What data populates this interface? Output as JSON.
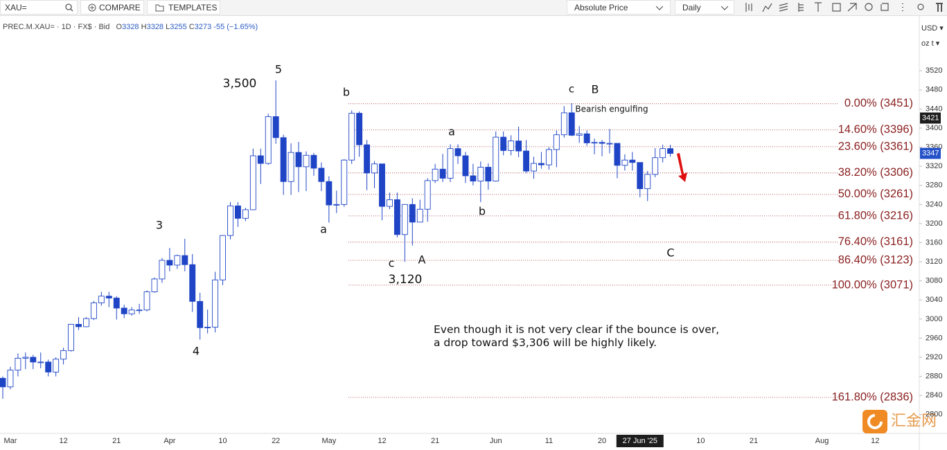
{
  "toolbar": {
    "symbol": "XAU=",
    "compare": "COMPARE",
    "templates": "TEMPLATES",
    "price_mode": "Absolute Price",
    "interval": "Daily"
  },
  "legend": {
    "instrument": "PREC.M.XAU= · 1D · FX$ · Bid",
    "ohlc": [
      {
        "key": "O",
        "value": 3328
      },
      {
        "key": "H",
        "value": 3328
      },
      {
        "key": "L",
        "value": 3255
      },
      {
        "key": "C",
        "value": 3273
      }
    ],
    "change": "-55 (−1.65%)"
  },
  "chart_data": {
    "type": "candlestick",
    "categories": [
      null,
      "Mar",
      null,
      null,
      null,
      null,
      null,
      null,
      "12",
      null,
      null,
      null,
      null,
      null,
      null,
      "21",
      null,
      null,
      null,
      null,
      null,
      null,
      "Apr",
      null,
      null,
      null,
      null,
      null,
      null,
      "10",
      null,
      null,
      null,
      null,
      null,
      null,
      "22",
      null,
      null,
      null,
      null,
      null,
      null,
      "May",
      null,
      null,
      null,
      null,
      null,
      null,
      "12",
      null,
      null,
      null,
      null,
      null,
      null,
      "21",
      null,
      null,
      null,
      null,
      null,
      null,
      null,
      "Jun",
      null,
      null,
      null,
      null,
      null,
      null,
      "11",
      null,
      null,
      null,
      null,
      null,
      null,
      "20",
      null,
      null,
      null,
      null,
      "27 Jun '25",
      null,
      null,
      null,
      null,
      null,
      null,
      null,
      "10",
      null,
      null,
      null,
      null,
      null,
      null,
      "21",
      null,
      null,
      null,
      null,
      null,
      null,
      null,
      null,
      "Aug",
      null,
      null,
      null,
      null,
      null,
      null,
      "12",
      null,
      null,
      null,
      null,
      null
    ],
    "open": [
      2876,
      2858,
      2893,
      2918,
      2920,
      2910,
      2910,
      2889,
      2916,
      2934,
      2989,
      2984,
      3001,
      3034,
      3048,
      3044,
      3023,
      3011,
      3019,
      3019,
      3057,
      3084,
      3123,
      3113,
      3133,
      3114,
      3037,
      2982,
      2983,
      3082,
      3175,
      3237,
      3211,
      3229,
      3342,
      3326,
      3424,
      3380,
      3288,
      3349,
      3319,
      3343,
      3316,
      3288,
      3239,
      3240,
      3333,
      3431,
      3365,
      3306,
      3325,
      3236,
      3250,
      3177,
      3240,
      3203,
      3230,
      3290,
      3314,
      3295,
      3357,
      3342,
      3300,
      3289,
      3318,
      3289,
      3381,
      3353,
      3373,
      3352,
      3310,
      3326,
      3323,
      3355,
      3386,
      3432,
      3385,
      3388,
      3369,
      3370,
      3368,
      3368,
      3322,
      3333,
      3328,
      3273,
      3303,
      3338,
      3357,
      null,
      null,
      null,
      null,
      null,
      null,
      null,
      null,
      null,
      null,
      null,
      null,
      null,
      null,
      null,
      null,
      null,
      null,
      null,
      null,
      null,
      null,
      null,
      null,
      null,
      null,
      null,
      null,
      null,
      null,
      null,
      null
    ],
    "high": [
      2880,
      2900,
      2928,
      2930,
      2925,
      2930,
      2915,
      2920,
      2940,
      2990,
      3004,
      3004,
      3038,
      3057,
      3057,
      3048,
      3030,
      3025,
      3032,
      3060,
      3087,
      3128,
      3149,
      3135,
      3168,
      3136,
      3055,
      3020,
      3099,
      3176,
      3245,
      3245,
      3233,
      3357,
      3357,
      3430,
      3500,
      3386,
      3368,
      3371,
      3351,
      3348,
      3328,
      3299,
      3269,
      3335,
      3437,
      3435,
      3375,
      3331,
      3325,
      3265,
      3265,
      3240,
      3253,
      3250,
      3295,
      3325,
      3346,
      3366,
      3366,
      3350,
      3325,
      3330,
      3326,
      3393,
      3393,
      3385,
      3403,
      3375,
      3340,
      3350,
      3360,
      3395,
      3446,
      3452,
      3404,
      3395,
      3378,
      3375,
      3398,
      3368,
      3345,
      3350,
      3328,
      3310,
      3358,
      3365,
      3365,
      null,
      null,
      null,
      null,
      null,
      null,
      null,
      null,
      null,
      null,
      null,
      null,
      null,
      null,
      null,
      null,
      null,
      null,
      null,
      null,
      null,
      null,
      null,
      null,
      null,
      null,
      null,
      null,
      null,
      null,
      null,
      null
    ],
    "low": [
      2833,
      2853,
      2880,
      2895,
      2895,
      2897,
      2880,
      2880,
      2905,
      2932,
      2977,
      2983,
      2998,
      3028,
      3025,
      2999,
      3002,
      3007,
      3011,
      3016,
      3055,
      3076,
      3100,
      3105,
      3100,
      3015,
      2957,
      2970,
      2972,
      3071,
      3167,
      3193,
      3205,
      3228,
      3283,
      3323,
      3367,
      3260,
      3260,
      3266,
      3268,
      3300,
      3268,
      3202,
      3222,
      3235,
      3325,
      3340,
      3270,
      3274,
      3207,
      3230,
      3171,
      3120,
      3154,
      3203,
      3204,
      3285,
      3287,
      3287,
      3325,
      3285,
      3280,
      3245,
      3271,
      3288,
      3343,
      3343,
      3339,
      3306,
      3294,
      3315,
      3313,
      3318,
      3380,
      3383,
      3369,
      3363,
      3345,
      3341,
      3347,
      3295,
      3311,
      3311,
      3255,
      3247,
      3297,
      3328,
      3340,
      null,
      null,
      null,
      null,
      null,
      null,
      null,
      null,
      null,
      null,
      null,
      null,
      null,
      null,
      null,
      null,
      null,
      null,
      null,
      null,
      null,
      null,
      null,
      null,
      null,
      null,
      null,
      null,
      null,
      null,
      null,
      null
    ],
    "close": [
      2858,
      2893,
      2918,
      2920,
      2910,
      2910,
      2889,
      2916,
      2934,
      2989,
      2984,
      3001,
      3034,
      3048,
      3044,
      3023,
      3011,
      3019,
      3019,
      3057,
      3084,
      3123,
      3113,
      3133,
      3114,
      3037,
      2982,
      2983,
      3082,
      3175,
      3237,
      3211,
      3229,
      3342,
      3326,
      3424,
      3380,
      3288,
      3349,
      3319,
      3343,
      3316,
      3288,
      3239,
      3240,
      3333,
      3431,
      3365,
      3306,
      3325,
      3236,
      3250,
      3177,
      3240,
      3203,
      3230,
      3290,
      3314,
      3295,
      3357,
      3342,
      3300,
      3289,
      3318,
      3289,
      3381,
      3353,
      3373,
      3352,
      3310,
      3326,
      3323,
      3355,
      3386,
      3432,
      3385,
      3388,
      3369,
      3370,
      3368,
      3368,
      3322,
      3333,
      3328,
      3273,
      3303,
      3338,
      3357,
      3347,
      null,
      null,
      null,
      null,
      null,
      null,
      null,
      null,
      null,
      null,
      null,
      null,
      null,
      null,
      null,
      null,
      null,
      null,
      null,
      null,
      null,
      null,
      null,
      null,
      null,
      null,
      null,
      null,
      null,
      null,
      null,
      null
    ],
    "up_color": "#ffffff",
    "down_color": "#1f45c6",
    "outline_color": "#1f45c6",
    "ylim": [
      2762,
      3632
    ],
    "yticks": [
      2800,
      2840,
      2880,
      2920,
      2960,
      3000,
      3040,
      3080,
      3120,
      3160,
      3200,
      3240,
      3280,
      3320,
      3360,
      3400,
      3440,
      3480,
      3520
    ],
    "grid": false,
    "currency": "USD",
    "unit": "oz t",
    "crosshair_price": 3421,
    "last_price": 3347,
    "fib_levels": [
      {
        "label": "0.00% (3451)",
        "value": 3451
      },
      {
        "label": "14.60% (3396)",
        "value": 3396
      },
      {
        "label": "23.60% (3361)",
        "value": 3361
      },
      {
        "label": "38.20% (3306)",
        "value": 3306
      },
      {
        "label": "50.00% (3261)",
        "value": 3261
      },
      {
        "label": "61.80% (3216)",
        "value": 3216
      },
      {
        "label": "76.40% (3161)",
        "value": 3161
      },
      {
        "label": "86.40% (3123)",
        "value": 3123
      },
      {
        "label": "100.00% (3071)",
        "value": 3071
      },
      {
        "label": "161.80% (2836)",
        "value": 2836
      }
    ],
    "annotations": [
      "5",
      "3,500",
      "b",
      "c",
      "B",
      "Bearish engulfing",
      "a",
      "3",
      "a",
      "b",
      "c",
      "A",
      "3,120",
      "C",
      "4"
    ],
    "note": "Even though it is not very clear if the bounce is over, a drop toward $3,306 will be highly likely."
  },
  "watermark": {
    "brand": "汇金网"
  }
}
